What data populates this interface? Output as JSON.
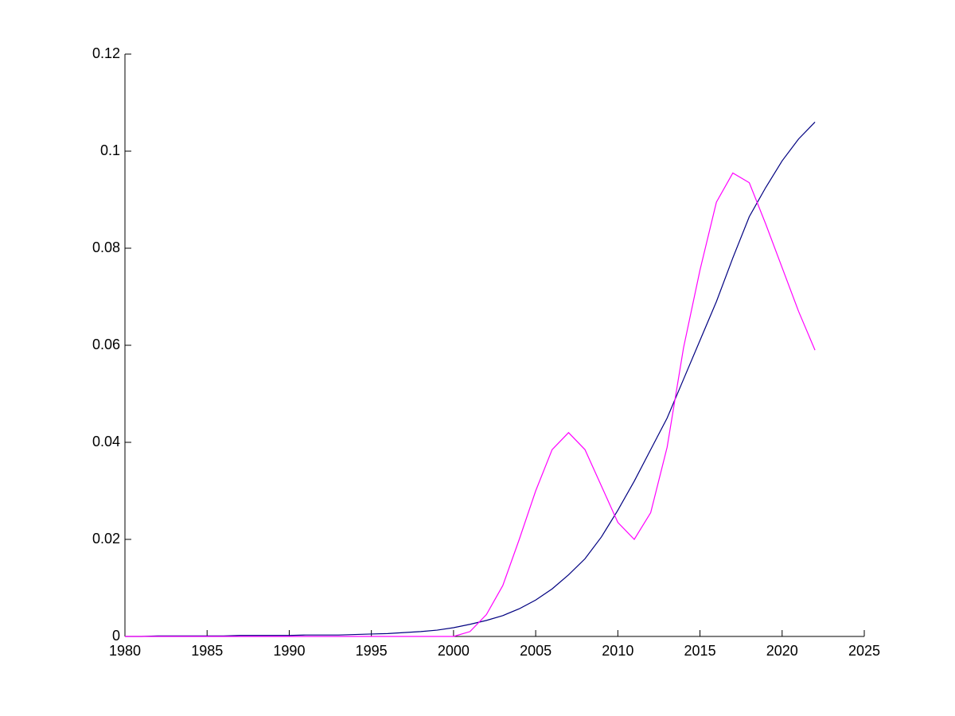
{
  "chart_data": {
    "type": "line",
    "x": [
      1980,
      1981,
      1982,
      1983,
      1984,
      1985,
      1986,
      1987,
      1988,
      1989,
      1990,
      1991,
      1992,
      1993,
      1994,
      1995,
      1996,
      1997,
      1998,
      1999,
      2000,
      2001,
      2002,
      2003,
      2004,
      2005,
      2006,
      2007,
      2008,
      2009,
      2010,
      2011,
      2012,
      2013,
      2014,
      2015,
      2016,
      2017,
      2018,
      2019,
      2020,
      2021,
      2022
    ],
    "series": [
      {
        "color": "#000080",
        "values": [
          0,
          0,
          0.0001,
          0.0001,
          0.0001,
          0.0001,
          0.0001,
          0.0002,
          0.0002,
          0.0002,
          0.0002,
          0.0003,
          0.0003,
          0.0003,
          0.0004,
          0.0005,
          0.0006,
          0.0008,
          0.001,
          0.0013,
          0.0018,
          0.0025,
          0.0033,
          0.0043,
          0.0057,
          0.0075,
          0.0098,
          0.0127,
          0.016,
          0.0205,
          0.026,
          0.032,
          0.0385,
          0.045,
          0.053,
          0.061,
          0.069,
          0.078,
          0.0865,
          0.0925,
          0.098,
          0.1025,
          0.106
        ]
      },
      {
        "color": "#ff00ff",
        "values": [
          0,
          0,
          0,
          0,
          0,
          0,
          0,
          0,
          0,
          0,
          0,
          0,
          0,
          0,
          0,
          0,
          0,
          0,
          0,
          0,
          0,
          0.001,
          0.0045,
          0.0105,
          0.02,
          0.03,
          0.0385,
          0.042,
          0.0385,
          0.031,
          0.0235,
          0.02,
          0.0255,
          0.039,
          0.0595,
          0.0755,
          0.0895,
          0.0955,
          0.0935,
          0.085,
          0.076,
          0.067,
          0.059
        ]
      }
    ],
    "xlim": [
      1980,
      2025
    ],
    "xticks": [
      1980,
      1985,
      1990,
      1995,
      2000,
      2005,
      2010,
      2015,
      2020,
      2025
    ],
    "ylim": [
      0,
      0.12
    ],
    "yticks": [
      0,
      0.02,
      0.04,
      0.06,
      0.08,
      0.1,
      0.12
    ]
  }
}
